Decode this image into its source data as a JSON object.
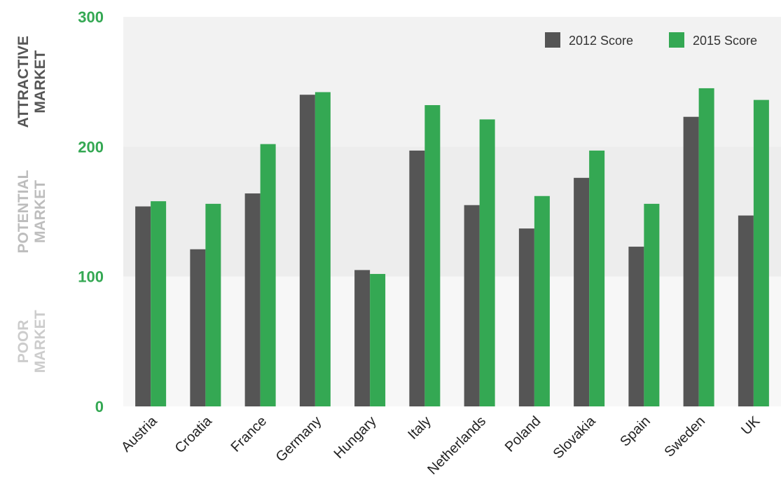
{
  "chart_data": {
    "type": "bar",
    "categories": [
      "Austria",
      "Croatia",
      "France",
      "Germany",
      "Hungary",
      "Italy",
      "Netherlands",
      "Poland",
      "Slovakia",
      "Spain",
      "Sweden",
      "UK"
    ],
    "series": [
      {
        "name": "2012 Score",
        "color": "#555555",
        "values": [
          154,
          121,
          164,
          240,
          105,
          197,
          155,
          137,
          176,
          123,
          223,
          147
        ]
      },
      {
        "name": "2015 Score",
        "color": "#34a853",
        "values": [
          158,
          156,
          202,
          242,
          102,
          232,
          221,
          162,
          197,
          156,
          245,
          236
        ]
      }
    ],
    "ylim": [
      0,
      300
    ],
    "yticks": [
      "0",
      "100",
      "200",
      "300"
    ],
    "ytick_color": "#34a853",
    "zones": [
      {
        "label_line1": "POOR",
        "label_line2": "MARKET",
        "range": [
          0,
          100
        ],
        "fill": "#f7f7f7",
        "label_color": "#cccccc"
      },
      {
        "label_line1": "POTENTIAL",
        "label_line2": "MARKET",
        "range": [
          100,
          200
        ],
        "fill": "#ededed",
        "label_color": "#bdbdbd"
      },
      {
        "label_line1": "ATTRACTIVE",
        "label_line2": "MARKET",
        "range": [
          200,
          300
        ],
        "fill": "#f2f2f2",
        "label_color": "#555555"
      }
    ],
    "legend_position": "top-right",
    "grid": false
  }
}
